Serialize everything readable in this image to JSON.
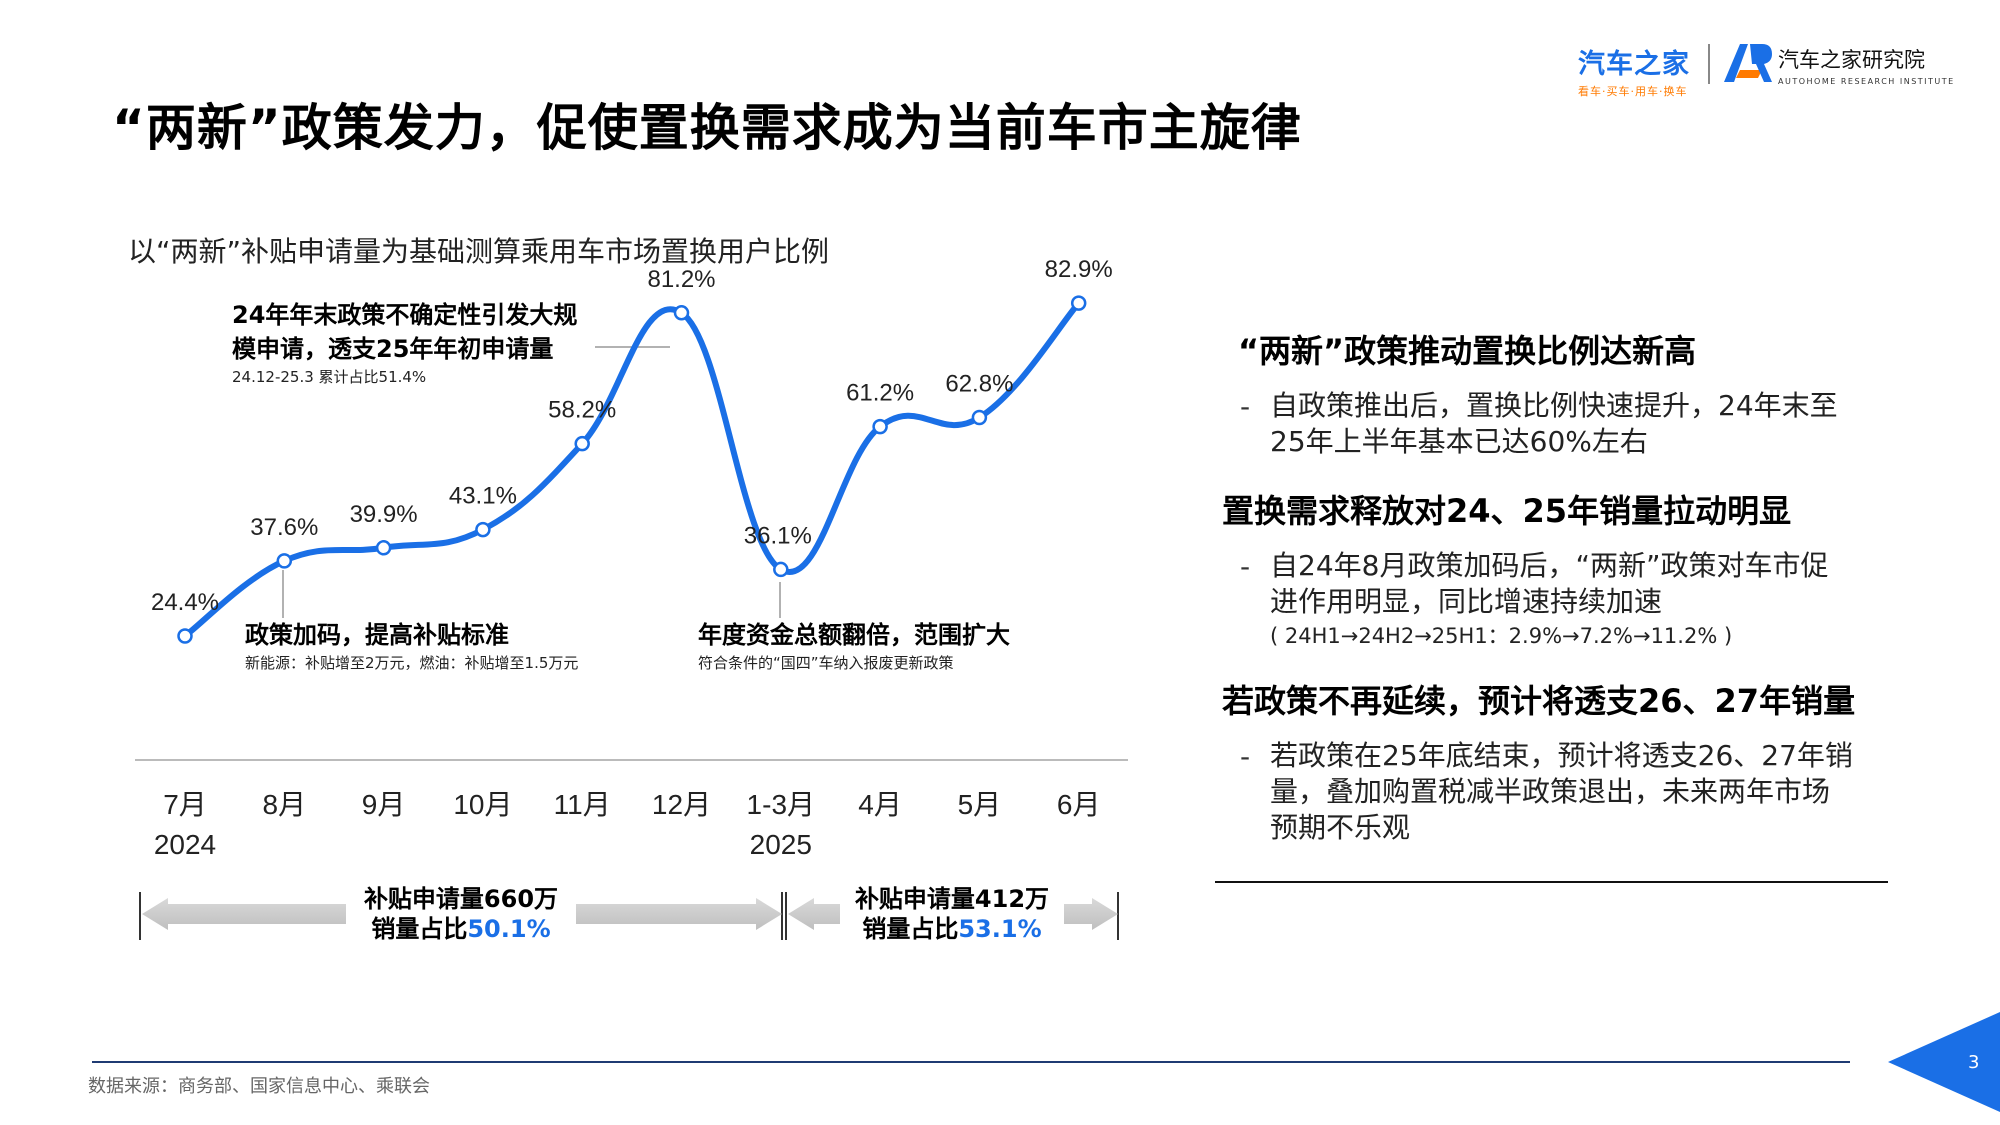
{
  "page": {
    "title": "“两新”政策发力，促使置换需求成为当前车市主旋律",
    "page_number": "3",
    "source": "数据来源：商务部、国家信息中心、乘联会",
    "colors": {
      "accent": "#1a6fe6",
      "logo_orange": "#ff7a00"
    }
  },
  "logos": {
    "autohome": {
      "name": "汽车之家",
      "slogan": "看车·买车·用车·换车"
    },
    "research": {
      "name": "汽车之家研究院",
      "sub": "AUTOHOME RESEARCH INSTITUTE",
      "icon": "ar-logo-icon"
    }
  },
  "chart_data": {
    "type": "line",
    "title": "以“两新”补贴申请量为基础测算乘用车市场置换用户比例",
    "categories": [
      "7月",
      "8月",
      "9月",
      "10月",
      "11月",
      "12月",
      "1-3月",
      "4月",
      "5月",
      "6月"
    ],
    "year_labels": [
      "2024",
      "",
      "",
      "",
      "",
      "",
      "2025",
      "",
      "",
      ""
    ],
    "series": [
      {
        "values": [
          24.4,
          37.6,
          39.9,
          43.1,
          58.2,
          81.2,
          36.1,
          61.2,
          62.8,
          82.9
        ]
      }
    ],
    "data_labels": [
      "24.4%",
      "37.6%",
      "39.9%",
      "43.1%",
      "58.2%",
      "81.2%",
      "36.1%",
      "61.2%",
      "62.8%",
      "82.9%"
    ],
    "unit": "%",
    "annotations": [
      {
        "title_lines": [
          "24年年末政策不确定性引发大规",
          "模申请，透支25年年初申请量"
        ],
        "sub": "24.12-25.3 累计占比51.4%"
      },
      {
        "title_lines": [
          "政策加码，提高补贴标准"
        ],
        "sub": "新能源：补贴增至2万元，燃油：补贴增至1.5万元"
      },
      {
        "title_lines": [
          "年度资金总额翻倍，范围扩大"
        ],
        "sub": "符合条件的“国四”车纳入报废更新政策"
      }
    ],
    "period_bars": [
      {
        "line1": "补贴申请量660万",
        "line2_prefix": "销量占比",
        "line2_pct": "50.1%"
      },
      {
        "line1": "补贴申请量412万",
        "line2_prefix": "销量占比",
        "line2_pct": "53.1%"
      }
    ]
  },
  "right_panel": {
    "sections": [
      {
        "heading": "“两新”政策推动置换比例达新高",
        "bullet_lines": [
          "自政策推出后，置换比例快速提升，24年末至",
          "25年上半年基本已达60%左右"
        ]
      },
      {
        "heading": "置换需求释放对24、25年销量拉动明显",
        "bullet_lines": [
          "自24年8月政策加码后，“两新”政策对车市促",
          "进作用明显，同比增速持续加速"
        ],
        "extra": "( 24H1→24H2→25H1：2.9%→7.2%→11.2% )"
      },
      {
        "heading": "若政策不再延续，预计将透支26、27年销量",
        "bullet_lines": [
          "若政策在25年底结束，预计将透支26、27年销",
          "量，叠加购置税减半政策退出，未来两年市场",
          "预期不乐观"
        ]
      }
    ],
    "dash": "-"
  }
}
